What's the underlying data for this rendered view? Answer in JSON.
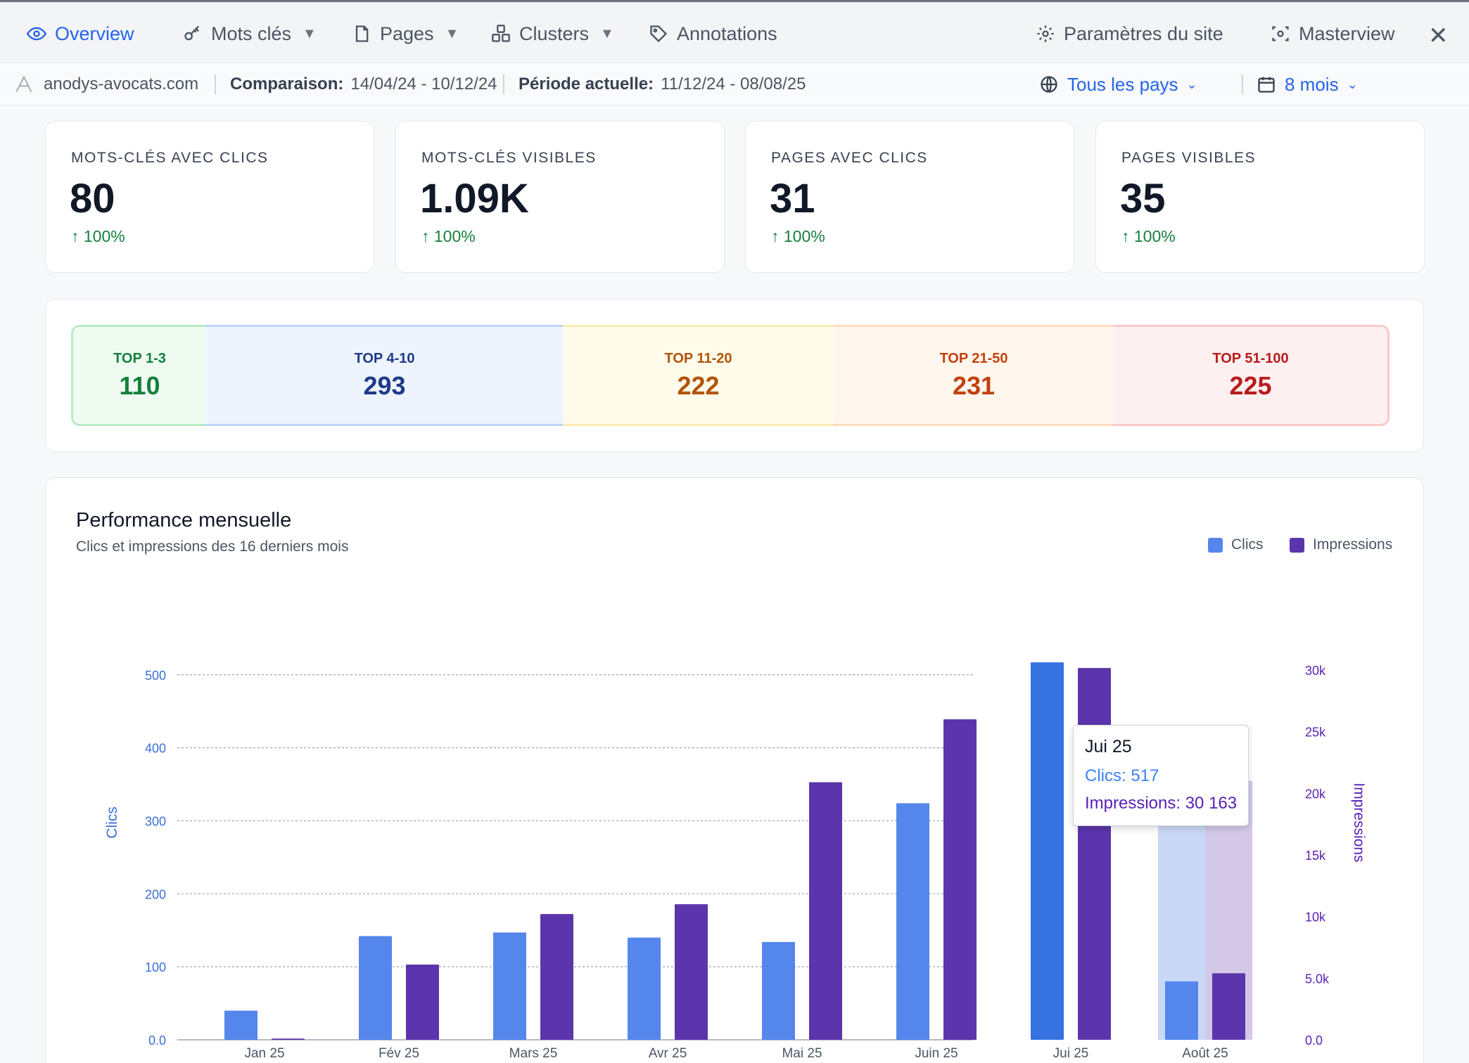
{
  "nav": {
    "tabs": [
      {
        "label": "Overview",
        "icon": "eye-icon"
      },
      {
        "label": "Mots clés",
        "icon": "key-icon"
      },
      {
        "label": "Pages",
        "icon": "file-icon"
      },
      {
        "label": "Clusters",
        "icon": "cubes-icon"
      },
      {
        "label": "Annotations",
        "icon": "tag-icon"
      }
    ],
    "settings_label": "Paramètres du site",
    "masterview_label": "Masterview",
    "caret": "▼",
    "close": "✕"
  },
  "subheader": {
    "site": "anodys-avocats.com",
    "comparison_label": "Comparaison:",
    "comparison_value": "14/04/24 - 10/12/24",
    "current_label": "Période actuelle:",
    "current_value": "11/12/24 - 08/08/25",
    "country": "Tous les pays",
    "period": "8 mois"
  },
  "kpis": [
    {
      "label": "MOTS-CLÉS AVEC CLICS",
      "value": "80",
      "delta": "100%"
    },
    {
      "label": "MOTS-CLÉS VISIBLES",
      "value": "1.09K",
      "delta": "100%"
    },
    {
      "label": "PAGES AVEC CLICS",
      "value": "31",
      "delta": "100%"
    },
    {
      "label": "PAGES VISIBLES",
      "value": "35",
      "delta": "100%"
    }
  ],
  "ranges": [
    {
      "label": "TOP 1-3",
      "value": "110"
    },
    {
      "label": "TOP 4-10",
      "value": "293"
    },
    {
      "label": "TOP 11-20",
      "value": "222"
    },
    {
      "label": "TOP 21-50",
      "value": "231"
    },
    {
      "label": "TOP 51-100",
      "value": "225"
    }
  ],
  "chart": {
    "title": "Performance mensuelle",
    "subtitle": "Clics et impressions des 16 derniers mois",
    "legend_clics": "Clics",
    "legend_impressions": "Impressions",
    "tooltip": {
      "title": "Jui 25",
      "clics": "Clics: 517",
      "impressions": "Impressions: 30 163"
    }
  },
  "colors": {
    "clics": "#5586ec",
    "clics_highlight": "#3672e0",
    "impressions": "#5b35ab",
    "accent": "#2563eb"
  },
  "chart_data": {
    "type": "bar",
    "title": "Performance mensuelle",
    "subtitle": "Clics et impressions des 16 derniers mois",
    "categories": [
      "Jan 25",
      "Fév 25",
      "Mars 25",
      "Avr 25",
      "Mai 25",
      "Juin 25",
      "Jui 25",
      "Août 25"
    ],
    "series": [
      {
        "name": "Clics",
        "axis": "left",
        "values": [
          40,
          142,
          147,
          140,
          134,
          324,
          517,
          80
        ]
      },
      {
        "name": "Impressions",
        "axis": "right",
        "values": [
          100,
          6100,
          10200,
          11000,
          20900,
          26000,
          30163,
          5400
        ]
      }
    ],
    "ylabel": "Clics",
    "y2label": "Impressions",
    "ylim": [
      0,
      520
    ],
    "y2lim": [
      0,
      30800
    ],
    "yticks": [
      0,
      100,
      200,
      300,
      400,
      500
    ],
    "yticklabels": [
      "0.0",
      "100",
      "200",
      "300",
      "400",
      "500"
    ],
    "y2ticks": [
      0,
      5000,
      10000,
      15000,
      20000,
      25000,
      30000
    ],
    "y2ticklabels": [
      "0.0",
      "5.0k",
      "10k",
      "15k",
      "20k",
      "25k",
      "30k"
    ],
    "highlighted_category": "Jui 25",
    "hovered_category": "Août 25",
    "grid": true,
    "legend": "top-right"
  }
}
